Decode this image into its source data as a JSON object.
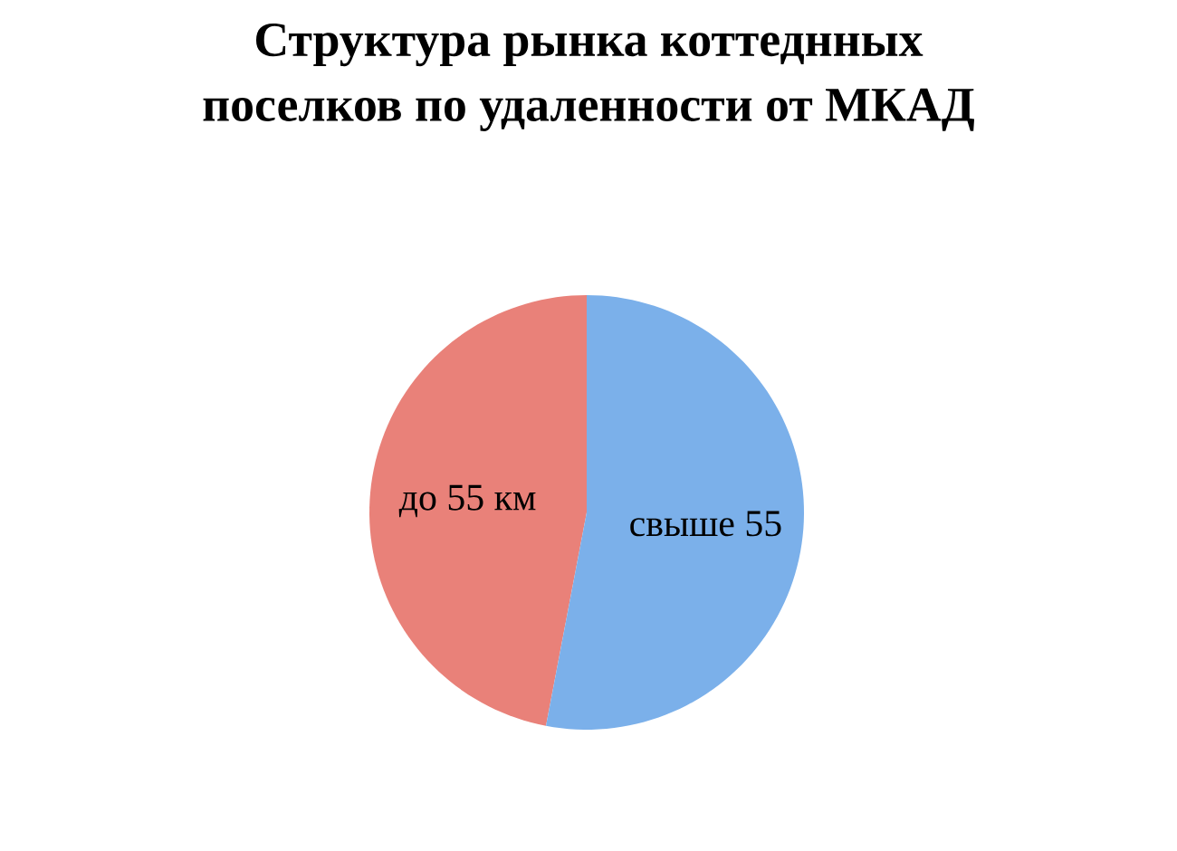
{
  "chart_data": {
    "type": "pie",
    "title": "Структура рынка коттеднных поселков по удаленности от МКАД",
    "categories": [
      "до 55 км",
      "свыше 55"
    ],
    "values": [
      47,
      53
    ],
    "colors": [
      "#e98179",
      "#7bb0ea"
    ]
  }
}
